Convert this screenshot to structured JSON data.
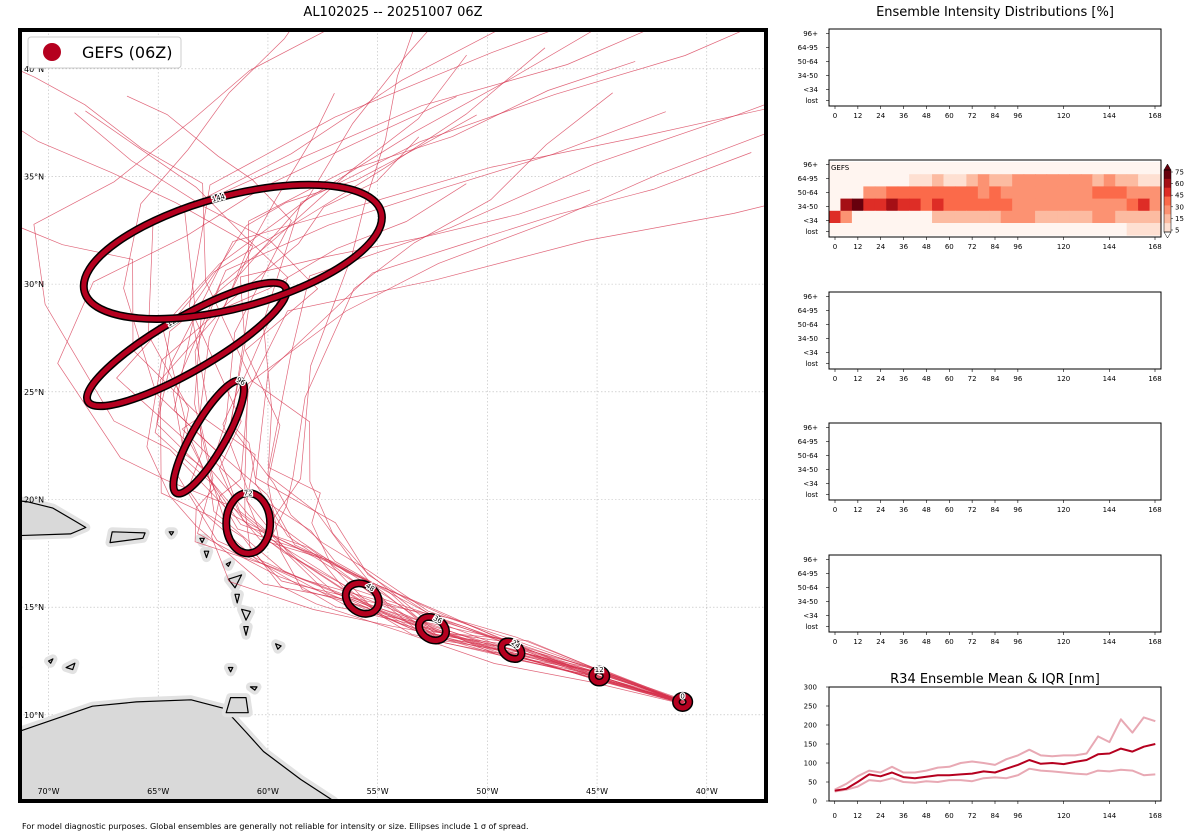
{
  "header": {
    "map_title": "AL102025 -- 20251007 06Z",
    "dist_title": "Ensemble Intensity Distributions [%]",
    "r34_title": "R34 Ensemble Mean & IQR [nm]"
  },
  "footer": {
    "text": "For model diagnostic purposes. Global ensembles are generally not reliable for intensity or size. Ellipses include 1 σ of spread."
  },
  "colors": {
    "ensemble_red": "#b5001f",
    "track_red": "#d6334d",
    "iqr_pink": "#e8a9b4",
    "land_grey": "#d9d9d9"
  },
  "chart_data": [
    {
      "type": "scatter",
      "name": "track-map",
      "title": "AL102025 -- 20251007 06Z",
      "legend": {
        "label": "GEFS (06Z)",
        "placement": "top-left"
      },
      "x_ticks": [
        "70°W",
        "65°W",
        "60°W",
        "55°W",
        "50°W",
        "45°W",
        "40°W"
      ],
      "x_tick_values": [
        -70,
        -65,
        -60,
        -55,
        -50,
        -45,
        -40
      ],
      "y_ticks": [
        "10°N",
        "15°N",
        "20°N",
        "25°N",
        "30°N",
        "35°N",
        "40°N"
      ],
      "y_tick_values": [
        10,
        15,
        20,
        25,
        30,
        35,
        40
      ],
      "xlim": [
        -71.3,
        -37.3
      ],
      "ylim": [
        6.0,
        41.8
      ],
      "grid": true,
      "ellipses": [
        {
          "hour": "0",
          "lon": -41.1,
          "lat": 10.6,
          "rx": 0.3,
          "ry": 0.28,
          "angle": 0
        },
        {
          "hour": "12",
          "lon": -44.9,
          "lat": 11.8,
          "rx": 0.32,
          "ry": 0.3,
          "angle": 0
        },
        {
          "hour": "24",
          "lon": -48.9,
          "lat": 13.0,
          "rx": 0.5,
          "ry": 0.35,
          "angle": 35
        },
        {
          "hour": "36",
          "lon": -52.5,
          "lat": 14.0,
          "rx": 0.65,
          "ry": 0.5,
          "angle": 30
        },
        {
          "hour": "48",
          "lon": -55.7,
          "lat": 15.4,
          "rx": 0.8,
          "ry": 0.65,
          "angle": 35
        },
        {
          "hour": "72",
          "lon": -60.9,
          "lat": 18.9,
          "rx": 1.0,
          "ry": 1.4,
          "angle": 0
        },
        {
          "hour": "96",
          "lon": -62.7,
          "lat": 22.9,
          "rx": 0.75,
          "ry": 3.0,
          "angle": 30
        },
        {
          "hour": "120",
          "lon": -63.7,
          "lat": 27.2,
          "rx": 5.2,
          "ry": 1.25,
          "angle": -30
        },
        {
          "hour": "144",
          "lon": -61.6,
          "lat": 31.5,
          "rx": 7.0,
          "ry": 2.6,
          "angle": -15
        }
      ]
    },
    {
      "type": "heatmap",
      "name": "intensity-distribution",
      "panel_label": "GEFS",
      "y_categories": [
        "96+",
        "64-95",
        "50-64",
        "34-50",
        "<34",
        "lost"
      ],
      "x_ticks": [
        0,
        12,
        24,
        36,
        48,
        60,
        72,
        84,
        96,
        120,
        144,
        168
      ],
      "colorbar_ticks": [
        5,
        15,
        30,
        45,
        60,
        75
      ],
      "x_hours": [
        0,
        6,
        12,
        18,
        24,
        30,
        36,
        42,
        48,
        54,
        60,
        66,
        72,
        78,
        84,
        90,
        96,
        102,
        108,
        114,
        120,
        126,
        132,
        138,
        144,
        150,
        156,
        162,
        168
      ],
      "values": {
        "96+": [
          0,
          0,
          0,
          0,
          0,
          0,
          0,
          0,
          0,
          0,
          0,
          0,
          0,
          0,
          0,
          0,
          0,
          0,
          0,
          0,
          0,
          0,
          0,
          0,
          0,
          0,
          0,
          0,
          0
        ],
        "64-95": [
          0,
          0,
          0,
          0,
          0,
          0,
          0,
          10,
          10,
          20,
          10,
          10,
          20,
          35,
          20,
          20,
          40,
          40,
          40,
          30,
          30,
          40,
          30,
          20,
          30,
          20,
          20,
          10,
          10
        ],
        "50-64": [
          0,
          0,
          0,
          30,
          30,
          45,
          45,
          45,
          55,
          50,
          50,
          50,
          45,
          40,
          45,
          40,
          40,
          40,
          40,
          40,
          40,
          30,
          30,
          45,
          45,
          45,
          40,
          35,
          35
        ],
        "34-50": [
          0,
          80,
          90,
          70,
          70,
          85,
          70,
          60,
          55,
          60,
          50,
          50,
          45,
          45,
          45,
          45,
          40,
          40,
          40,
          30,
          40,
          40,
          40,
          30,
          30,
          40,
          45,
          60,
          30
        ],
        "<34": [
          60,
          30,
          0,
          0,
          0,
          0,
          0,
          0,
          0,
          15,
          15,
          15,
          15,
          15,
          15,
          30,
          30,
          30,
          15,
          15,
          15,
          15,
          15,
          30,
          30,
          15,
          15,
          15,
          15
        ],
        "lost": [
          0,
          0,
          0,
          0,
          0,
          0,
          0,
          0,
          0,
          0,
          0,
          0,
          0,
          0,
          0,
          0,
          0,
          0,
          0,
          0,
          0,
          0,
          0,
          0,
          0,
          0,
          10,
          10,
          10
        ]
      }
    },
    {
      "type": "line",
      "name": "r34-mean-iqr",
      "title": "R34 Ensemble Mean & IQR [nm]",
      "x_ticks": [
        0,
        12,
        24,
        36,
        48,
        60,
        72,
        84,
        96,
        120,
        144,
        168
      ],
      "y_ticks": [
        0,
        50,
        100,
        150,
        200,
        250,
        300
      ],
      "ylim": [
        0,
        300
      ],
      "xlim": [
        -3,
        171
      ],
      "x": [
        0,
        6,
        12,
        18,
        24,
        30,
        36,
        42,
        48,
        54,
        60,
        66,
        72,
        78,
        84,
        90,
        96,
        102,
        108,
        114,
        120,
        126,
        132,
        138,
        144,
        150,
        156,
        162,
        168
      ],
      "series": [
        {
          "role": "mean",
          "color": "#b5001f",
          "values": [
            27,
            32,
            50,
            70,
            65,
            75,
            63,
            60,
            64,
            68,
            68,
            70,
            72,
            78,
            75,
            85,
            95,
            108,
            98,
            100,
            97,
            103,
            108,
            123,
            125,
            138,
            130,
            143,
            150
          ]
        },
        {
          "role": "q75",
          "color": "#e8a9b4",
          "values": [
            30,
            45,
            65,
            80,
            75,
            90,
            75,
            75,
            80,
            88,
            90,
            100,
            104,
            100,
            95,
            110,
            120,
            135,
            120,
            118,
            120,
            120,
            125,
            170,
            155,
            215,
            180,
            220,
            210
          ]
        },
        {
          "role": "q25",
          "color": "#e8a9b4",
          "values": [
            25,
            30,
            38,
            55,
            52,
            60,
            50,
            48,
            52,
            50,
            55,
            55,
            52,
            60,
            62,
            60,
            68,
            85,
            80,
            78,
            75,
            72,
            70,
            80,
            78,
            82,
            80,
            68,
            70
          ]
        }
      ]
    }
  ]
}
